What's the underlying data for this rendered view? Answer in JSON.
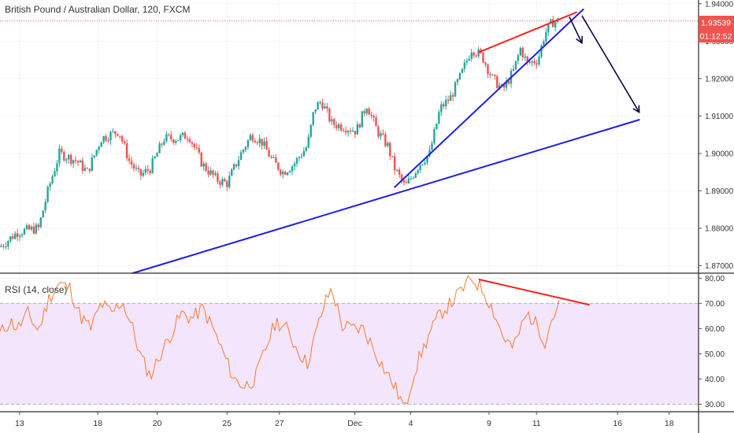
{
  "header": {
    "title": "British Pound / Australian Dollar, 120, FXCM"
  },
  "price_badges": {
    "last_price": "1.93539",
    "countdown": "01:12:52"
  },
  "rsi_label": "RSI (14, close)",
  "colors": {
    "up": "#26a69a",
    "down": "#ef5350",
    "trendline": "#1e1ee6",
    "divergence": "#ff1e1e",
    "arrow": "#0a0a3c",
    "rsi_line": "#f57c33",
    "rsi_band": "#f3e5fb",
    "price_line": "#ef5350"
  },
  "chart_data": [
    {
      "type": "candlestick",
      "title": "British Pound / Australian Dollar, 120, FXCM",
      "x_ticks": [
        "13",
        "18",
        "20",
        "25",
        "27",
        "Dec",
        "4",
        "9",
        "11",
        "16",
        "18"
      ],
      "y_ticks": [
        "1.94000",
        "1.93000",
        "1.92000",
        "1.91000",
        "1.90000",
        "1.89000",
        "1.88000",
        "1.87000"
      ],
      "ylim": [
        1.868,
        1.941
      ],
      "last_price": 1.93539,
      "price_path": [
        [
          0,
          1.875
        ],
        [
          0.025,
          1.879
        ],
        [
          0.055,
          1.88
        ],
        [
          0.07,
          1.891
        ],
        [
          0.085,
          1.9
        ],
        [
          0.11,
          1.898
        ],
        [
          0.125,
          1.895
        ],
        [
          0.145,
          1.904
        ],
        [
          0.17,
          1.906
        ],
        [
          0.185,
          1.898
        ],
        [
          0.2,
          1.894
        ],
        [
          0.215,
          1.896
        ],
        [
          0.235,
          1.904
        ],
        [
          0.255,
          1.904
        ],
        [
          0.27,
          1.905
        ],
        [
          0.29,
          1.897
        ],
        [
          0.31,
          1.893
        ],
        [
          0.325,
          1.892
        ],
        [
          0.345,
          1.9
        ],
        [
          0.36,
          1.905
        ],
        [
          0.375,
          1.903
        ],
        [
          0.39,
          1.898
        ],
        [
          0.405,
          1.895
        ],
        [
          0.42,
          1.897
        ],
        [
          0.44,
          1.902
        ],
        [
          0.45,
          1.912
        ],
        [
          0.46,
          1.914
        ],
        [
          0.475,
          1.908
        ],
        [
          0.495,
          1.907
        ],
        [
          0.51,
          1.906
        ],
        [
          0.525,
          1.913
        ],
        [
          0.54,
          1.906
        ],
        [
          0.555,
          1.902
        ],
        [
          0.565,
          1.896
        ],
        [
          0.58,
          1.891
        ],
        [
          0.6,
          1.897
        ],
        [
          0.615,
          1.9
        ],
        [
          0.63,
          1.912
        ],
        [
          0.645,
          1.915
        ],
        [
          0.66,
          1.921
        ],
        [
          0.675,
          1.928
        ],
        [
          0.69,
          1.926
        ],
        [
          0.705,
          1.92
        ],
        [
          0.72,
          1.917
        ],
        [
          0.735,
          1.922
        ],
        [
          0.745,
          1.928
        ],
        [
          0.755,
          1.924
        ],
        [
          0.77,
          1.925
        ],
        [
          0.78,
          1.932
        ],
        [
          0.79,
          1.935
        ],
        [
          0.8,
          1.9354
        ]
      ],
      "annotations": {
        "lower_trendline": [
          [
            0.19,
            1.868
          ],
          [
            0.915,
            1.909
          ]
        ],
        "upper_trendline": [
          [
            0.565,
            1.891
          ],
          [
            0.835,
            1.9385
          ]
        ],
        "divergence_line": [
          [
            0.685,
            1.927
          ],
          [
            0.825,
            1.9377
          ]
        ],
        "arrows": [
          [
            [
              0.815,
              1.9365
            ],
            [
              0.833,
              1.9295
            ]
          ],
          [
            [
              0.833,
              1.9368
            ],
            [
              0.915,
              1.911
            ]
          ]
        ]
      }
    },
    {
      "type": "line",
      "title": "RSI (14, close)",
      "y_ticks": [
        "80.00",
        "70.00",
        "60.00",
        "50.00",
        "40.00",
        "30.00"
      ],
      "ylim": [
        27,
        82
      ],
      "band": [
        30,
        70
      ],
      "series": [
        {
          "values": [
            [
              0,
              58
            ],
            [
              0.015,
              63
            ],
            [
              0.025,
              60
            ],
            [
              0.04,
              66
            ],
            [
              0.055,
              59
            ],
            [
              0.07,
              72
            ],
            [
              0.085,
              78
            ],
            [
              0.1,
              76
            ],
            [
              0.115,
              65
            ],
            [
              0.13,
              60
            ],
            [
              0.145,
              70
            ],
            [
              0.16,
              66
            ],
            [
              0.175,
              71
            ],
            [
              0.19,
              60
            ],
            [
              0.2,
              50
            ],
            [
              0.215,
              41
            ],
            [
              0.23,
              50
            ],
            [
              0.245,
              58
            ],
            [
              0.26,
              66
            ],
            [
              0.275,
              64
            ],
            [
              0.29,
              68
            ],
            [
              0.305,
              60
            ],
            [
              0.32,
              50
            ],
            [
              0.335,
              40
            ],
            [
              0.35,
              37
            ],
            [
              0.365,
              40
            ],
            [
              0.38,
              52
            ],
            [
              0.395,
              63
            ],
            [
              0.41,
              60
            ],
            [
              0.425,
              52
            ],
            [
              0.44,
              46
            ],
            [
              0.455,
              61
            ],
            [
              0.465,
              70
            ],
            [
              0.475,
              76
            ],
            [
              0.49,
              61
            ],
            [
              0.505,
              60
            ],
            [
              0.52,
              60
            ],
            [
              0.535,
              52
            ],
            [
              0.55,
              44
            ],
            [
              0.565,
              37
            ],
            [
              0.58,
              28
            ],
            [
              0.59,
              40
            ],
            [
              0.6,
              48
            ],
            [
              0.615,
              58
            ],
            [
              0.63,
              66
            ],
            [
              0.645,
              70
            ],
            [
              0.66,
              75
            ],
            [
              0.675,
              80
            ],
            [
              0.69,
              76
            ],
            [
              0.705,
              68
            ],
            [
              0.72,
              57
            ],
            [
              0.735,
              52
            ],
            [
              0.745,
              60
            ],
            [
              0.755,
              66
            ],
            [
              0.77,
              61
            ],
            [
              0.78,
              55
            ],
            [
              0.79,
              64
            ],
            [
              0.8,
              69
            ]
          ]
        }
      ],
      "annotations": {
        "divergence_line": [
          [
            0.686,
            79.5
          ],
          [
            0.843,
            69.5
          ]
        ]
      }
    }
  ]
}
